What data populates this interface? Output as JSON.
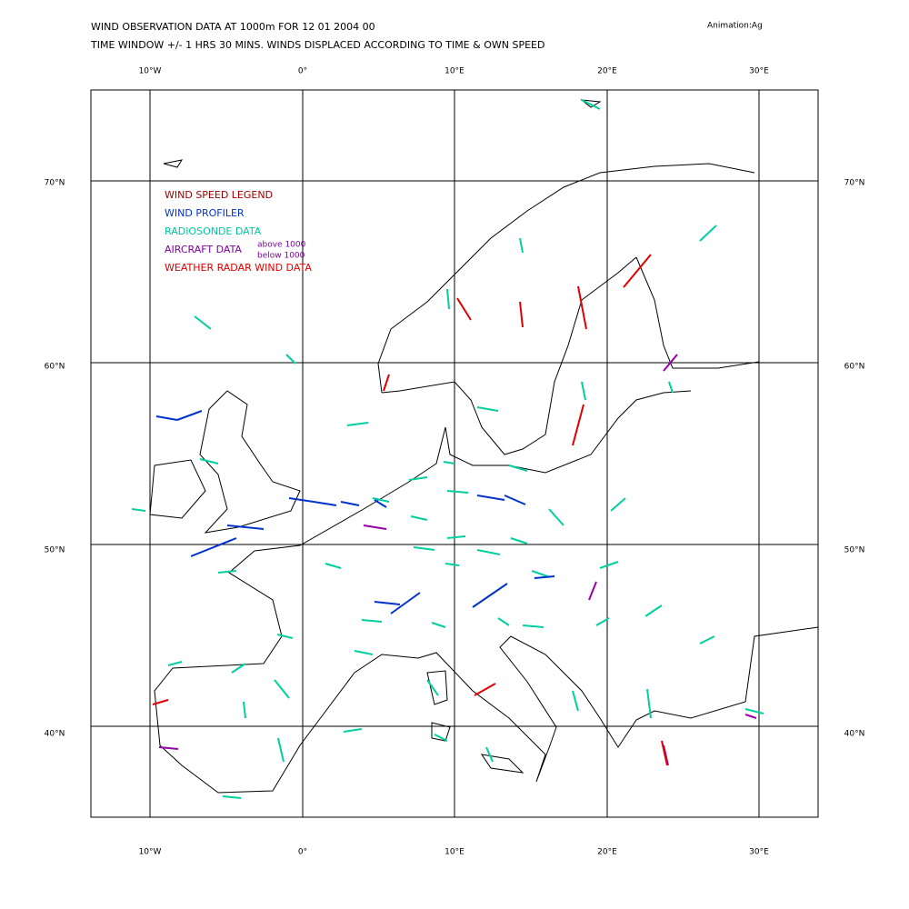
{
  "header": {
    "title": "WIND OBSERVATION DATA AT 1000m FOR 12 01 2004 00",
    "subtitle": "TIME WINDOW +/- 1 HRS 30 MINS. WINDS DISPLACED ACCORDING TO TIME & OWN SPEED",
    "animation": "Animation:Ag"
  },
  "map": {
    "longitude_labels": [
      "10°W",
      "0°",
      "10°E",
      "20°E",
      "30°E"
    ],
    "latitude_labels": [
      "70°N",
      "60°N",
      "50°N",
      "40°N"
    ]
  },
  "legend": {
    "items": [
      "WIND SPEED LEGEND",
      "WIND PROFILER",
      "RADIOSONDE DATA",
      "AIRCRAFT DATA",
      "WEATHER RADAR WIND DATA"
    ],
    "aircraft_levels": [
      "above 1000",
      "below 1000"
    ]
  }
}
